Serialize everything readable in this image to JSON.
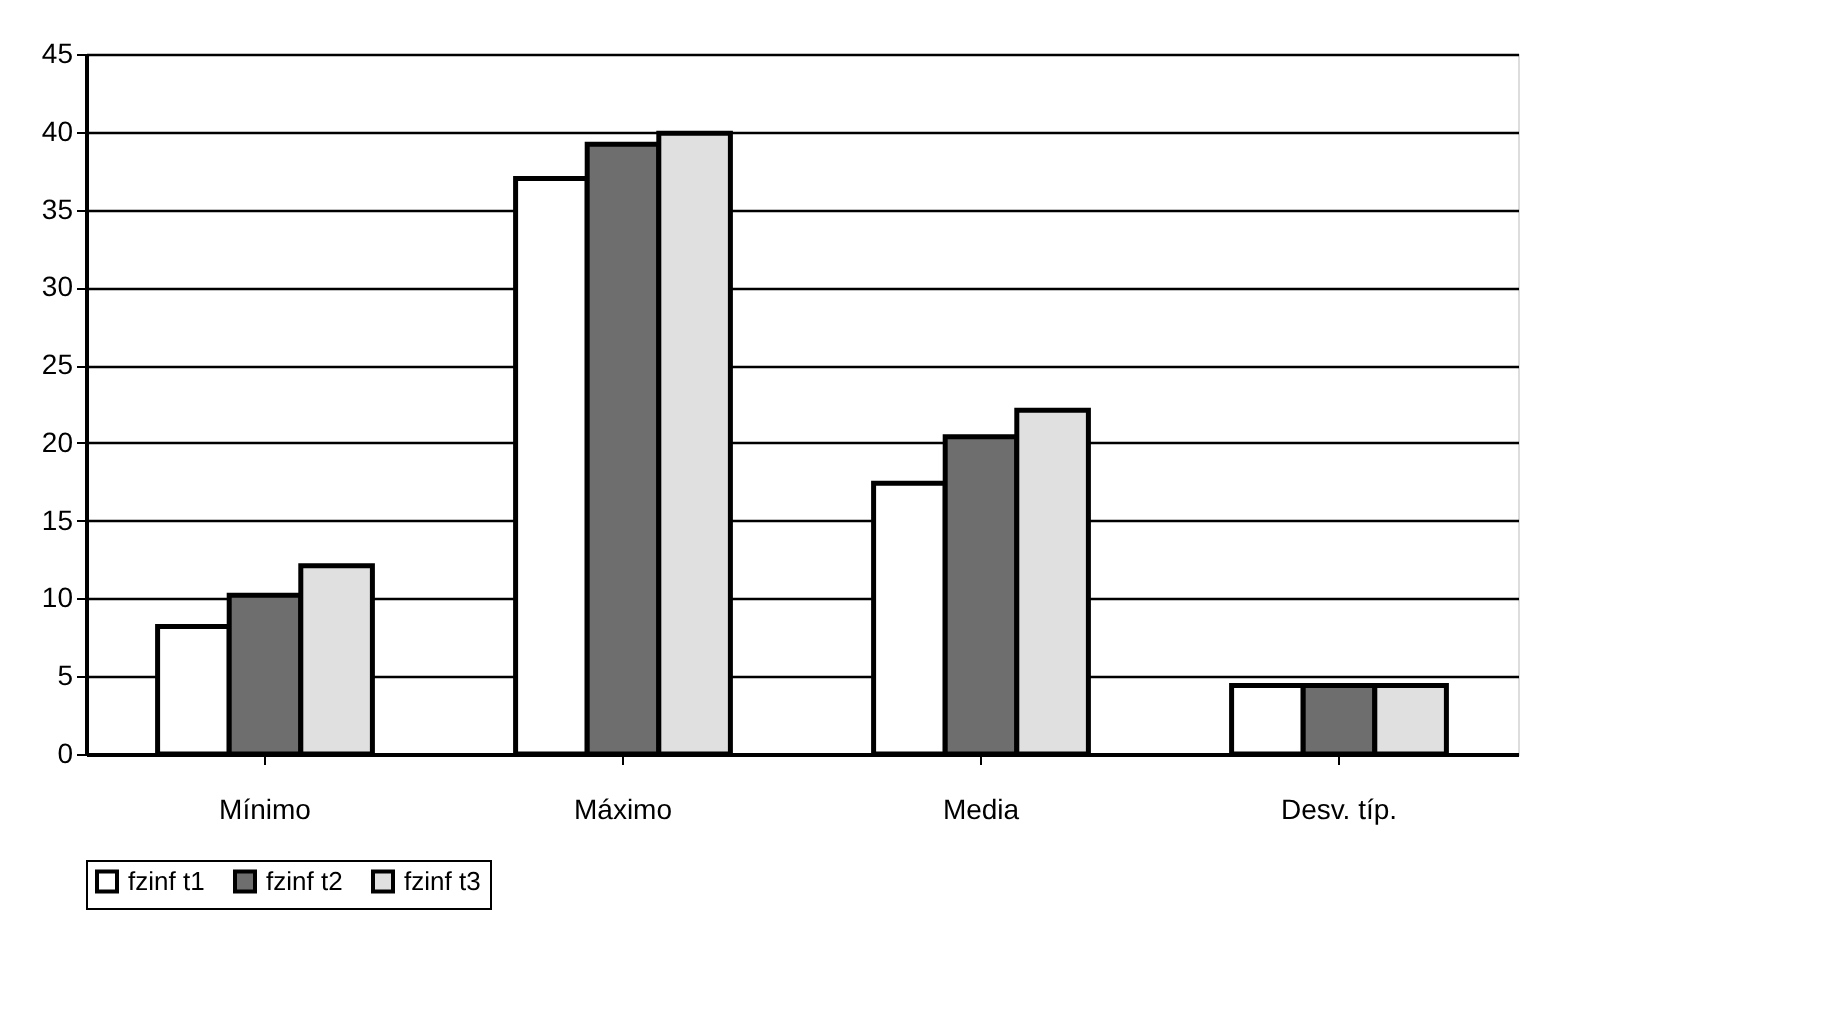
{
  "chart_data": {
    "type": "bar",
    "categories": [
      "Mínimo",
      "Máximo",
      "Media",
      "Desv. típ."
    ],
    "series": [
      {
        "name": "fzinf t1",
        "color": "#ffffff",
        "values": [
          8.2,
          37,
          17.4,
          4.4
        ]
      },
      {
        "name": "fzinf t2",
        "color": "#6e6e6e",
        "values": [
          10.2,
          39.2,
          20.4,
          4.4
        ]
      },
      {
        "name": "fzinf t3",
        "color": "#e0e0e0",
        "values": [
          12.1,
          39.9,
          22.1,
          4.4
        ]
      }
    ],
    "ylim": [
      0,
      45
    ],
    "yticks": [
      0,
      5,
      10,
      15,
      20,
      25,
      30,
      35,
      40,
      45
    ],
    "grid": "y",
    "legend": "bottom"
  }
}
